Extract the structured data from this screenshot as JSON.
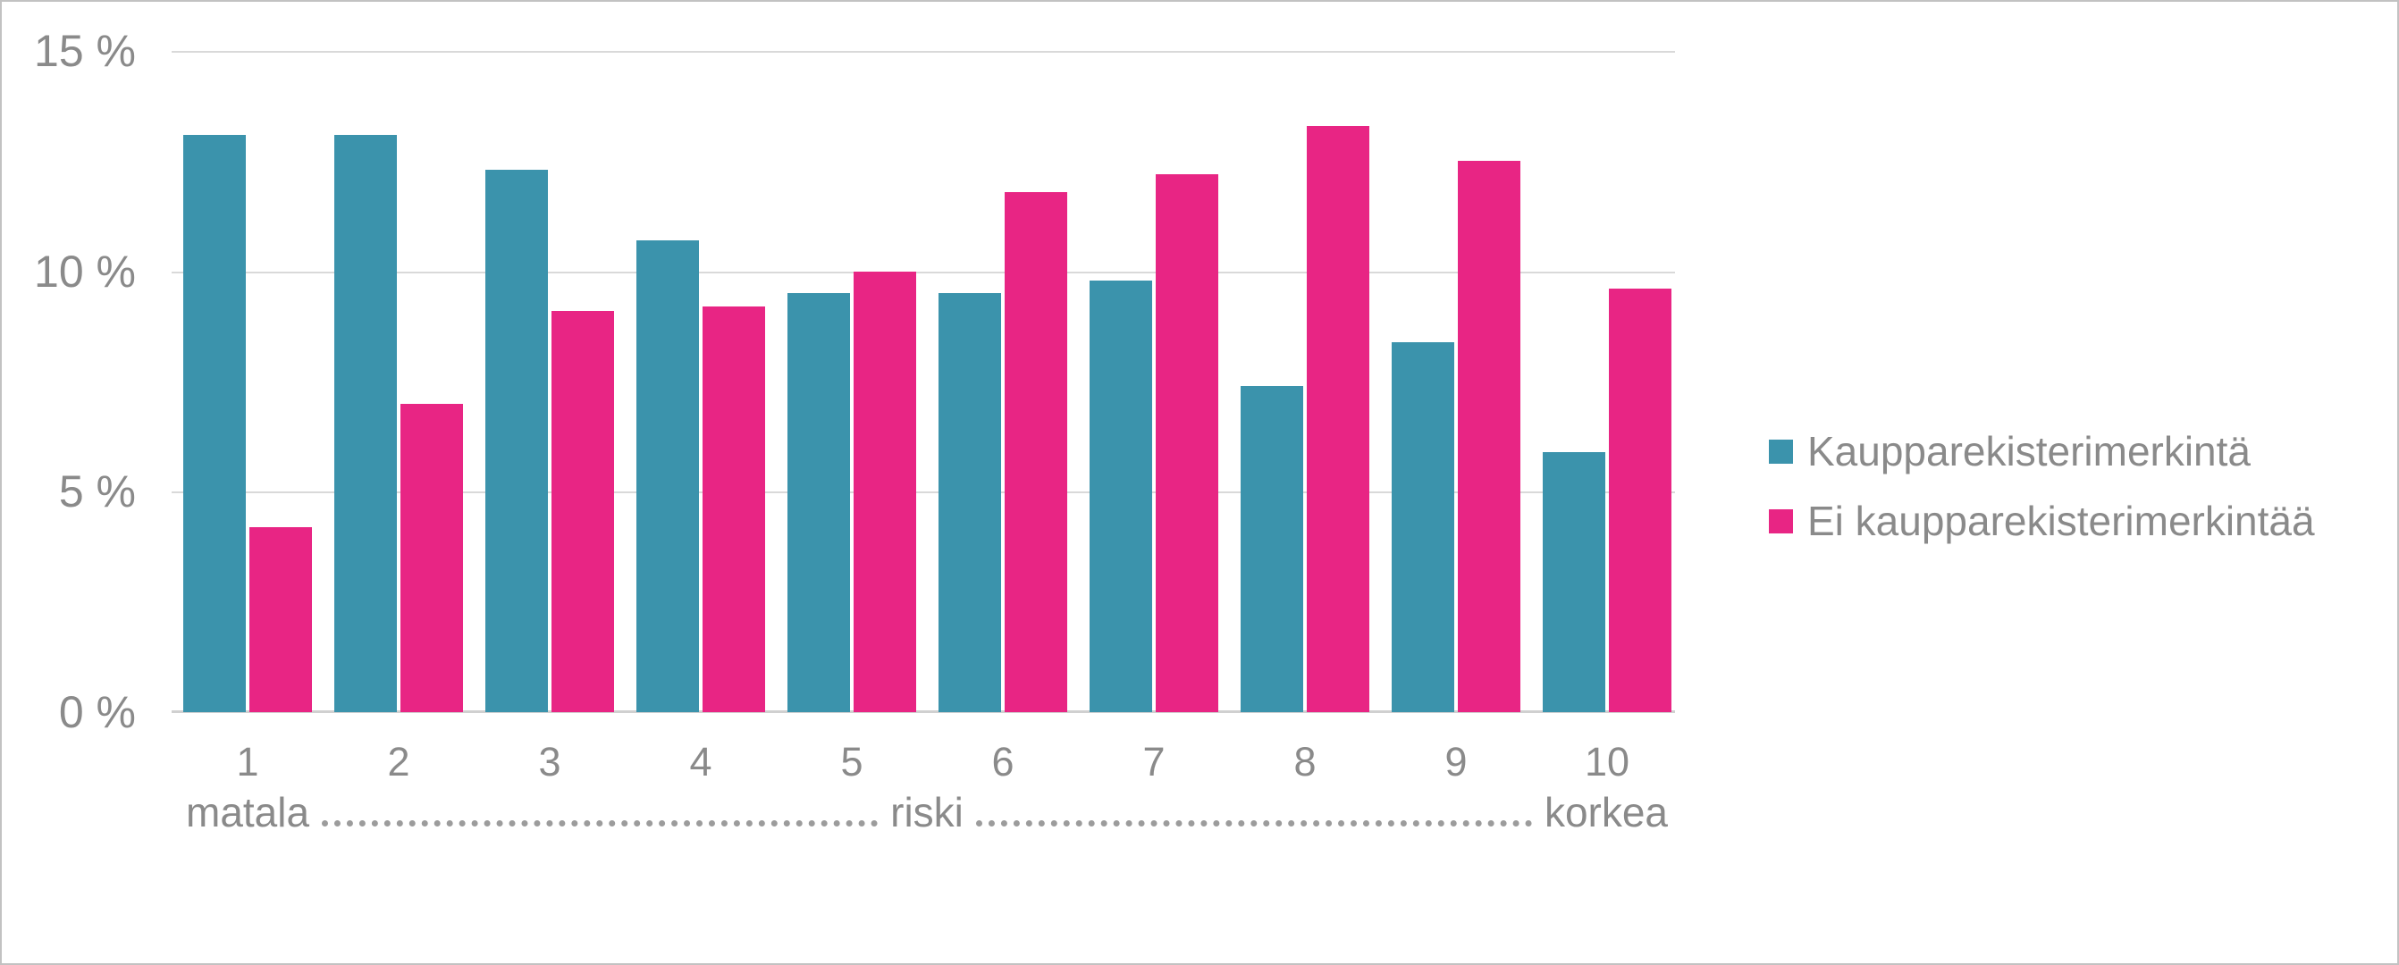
{
  "chart_data": {
    "type": "bar",
    "categories": [
      "1",
      "2",
      "3",
      "4",
      "5",
      "6",
      "7",
      "8",
      "9",
      "10"
    ],
    "series": [
      {
        "name": "Kaupparekisterimerkintä",
        "key": "kaupparekisterimerkinta",
        "color": "#3B93AC",
        "values": [
          13.1,
          13.1,
          12.3,
          10.7,
          9.5,
          9.5,
          9.8,
          7.4,
          8.4,
          5.9
        ]
      },
      {
        "name": "Ei kaupparekisterimerkintää",
        "key": "ei-kaupparekisterimerkintaa",
        "color": "#E82584",
        "values": [
          4.2,
          7.0,
          9.1,
          9.2,
          10.0,
          11.8,
          12.2,
          13.3,
          12.5,
          9.6
        ]
      }
    ],
    "y_ticks": [
      "15 %",
      "10 %",
      "5 %",
      "0 %"
    ],
    "y_tick_values": [
      15,
      10,
      5,
      0
    ],
    "ylim": [
      0,
      15
    ],
    "grid": true,
    "legend_position": "right",
    "x_axis_annotation": {
      "left": "matala",
      "middle": "riski",
      "right": "korkea"
    }
  },
  "colors": {
    "series1": "#3B93AC",
    "series2": "#E82584",
    "text": "#8a8a8a",
    "gridline": "#d9d9d9",
    "axis_line": "#d0d0d0",
    "leader_dots": "#9c9c9c",
    "background": "#ffffff",
    "border": "#c2c2c2"
  }
}
